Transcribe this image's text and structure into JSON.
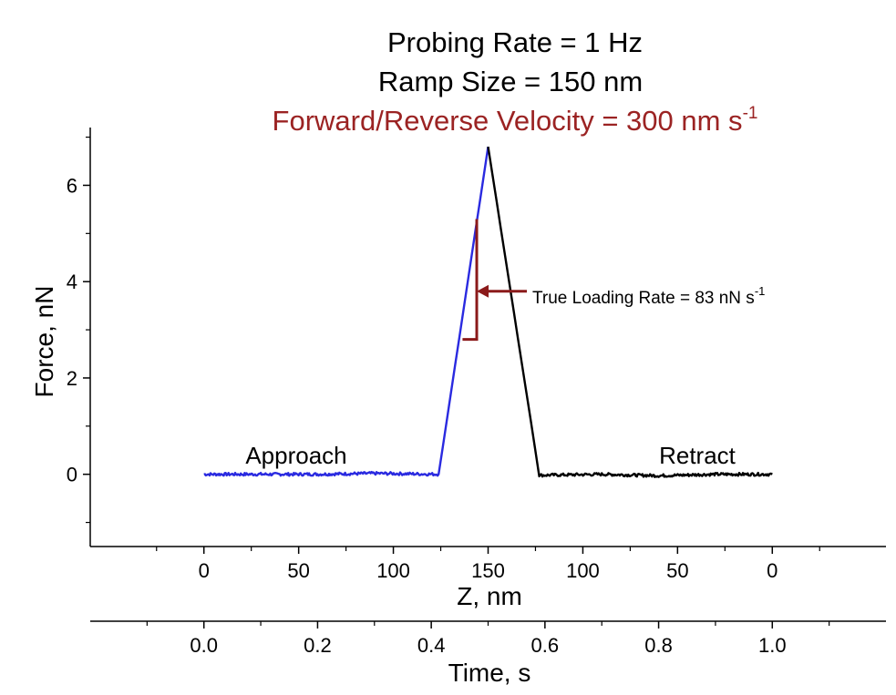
{
  "chart_data": {
    "type": "line",
    "title_lines": [
      {
        "text": "Probing Rate = 1 Hz",
        "color": "#000000"
      },
      {
        "text": "Ramp Size = 150 nm",
        "color": "#000000"
      },
      {
        "text": "Forward/Reverse Velocity = 300 nm s",
        "sup": "-1",
        "color": "#9b2323"
      }
    ],
    "ylabel": "Force, nN",
    "ylim": [
      -1.5,
      7.2
    ],
    "yticks": [
      0,
      2,
      4,
      6
    ],
    "x_top_label": "Z, nm",
    "x_top_ticks": [
      {
        "t": 0.0,
        "label": "0"
      },
      {
        "t": 0.1667,
        "label": "50"
      },
      {
        "t": 0.3333,
        "label": "100"
      },
      {
        "t": 0.5,
        "label": "150"
      },
      {
        "t": 0.6667,
        "label": "100"
      },
      {
        "t": 0.8333,
        "label": "50"
      },
      {
        "t": 1.0,
        "label": "0"
      }
    ],
    "x_bottom_label": "Time, s",
    "x_bottom_ticks": [
      "0.0",
      "0.2",
      "0.4",
      "0.6",
      "0.8",
      "1.0"
    ],
    "xlim": [
      -0.2,
      1.2
    ],
    "series": [
      {
        "name": "Approach",
        "color": "#2a2ae0",
        "time": [
          0.0,
          0.1,
          0.2,
          0.3,
          0.413,
          0.5
        ],
        "force": [
          0.0,
          0.0,
          0.0,
          0.02,
          0.0,
          6.8
        ]
      },
      {
        "name": "Retract",
        "color": "#000000",
        "time": [
          0.5,
          0.59,
          0.7,
          0.8,
          0.9,
          1.0
        ],
        "force": [
          6.8,
          -0.02,
          0.0,
          -0.03,
          0.0,
          0.0
        ]
      }
    ],
    "annotation": {
      "text": "True Loading Rate = 83 nN s",
      "sup": "-1",
      "color": "#8b1a1a",
      "slope_triangle": {
        "t_start": 0.455,
        "t_end": 0.48,
        "f_start": 2.8,
        "f_end": 5.3
      },
      "arrow_target": {
        "t": 0.48,
        "f": 3.8
      }
    }
  }
}
